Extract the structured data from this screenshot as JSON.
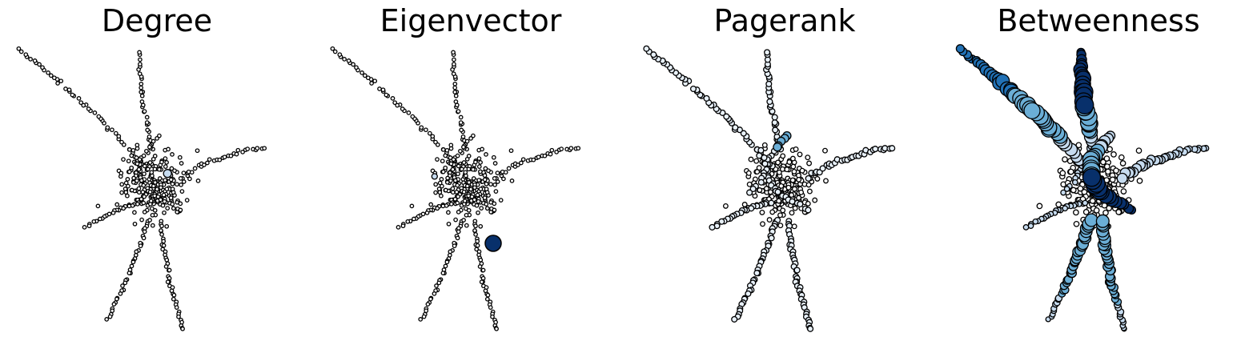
{
  "panels": [
    {
      "title": "Degree",
      "fill": "#ffffff",
      "mode": "degree"
    },
    {
      "title": "Eigenvector",
      "fill": "#ffffff",
      "mode": "eigen"
    },
    {
      "title": "Pagerank",
      "fill": "#e4eef8",
      "mode": "pagerank"
    },
    {
      "title": "Betweenness",
      "fill": "#c6dbef",
      "mode": "betweenness"
    }
  ],
  "palette": {
    "light": "#c6dbef",
    "mid": "#6baed6",
    "dark": "#2171b5",
    "darkest": "#08306b",
    "stroke": "#000000"
  }
}
